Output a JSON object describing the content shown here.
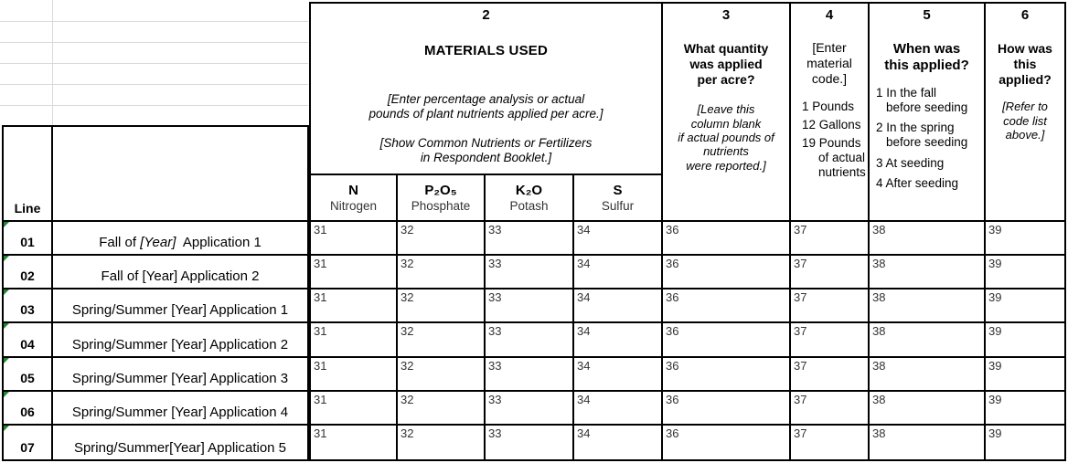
{
  "table": {
    "line_header": "Line",
    "columns": {
      "materials": {
        "number": "2",
        "title": "MATERIALS USED",
        "note1": "[Enter percentage analysis or actual\npounds of plant nutrients applied per acre.]",
        "note2": "[Show Common Nutrients or Fertilizers\nin Respondent Booklet.]",
        "nutrients": [
          {
            "symbol": "N",
            "name": "Nitrogen"
          },
          {
            "symbol": "P₂O₅",
            "name": "Phosphate"
          },
          {
            "symbol": "K₂O",
            "name": "Potash"
          },
          {
            "symbol": "S",
            "name": "Sulfur"
          }
        ]
      },
      "quantity": {
        "number": "3",
        "title": "What quantity\nwas applied\nper acre?",
        "note": "[Leave this\ncolumn blank\nif actual pounds of\nnutrients\nwere reported.]"
      },
      "material_code": {
        "number": "4",
        "note": "[Enter\nmaterial\ncode.]",
        "options": [
          "1 Pounds",
          "12 Gallons",
          "19 Pounds\nof actual\nnutrients"
        ]
      },
      "when_applied": {
        "number": "5",
        "title": "When was\nthis applied?",
        "options": [
          "1 In the fall\nbefore seeding",
          "2 In the spring\nbefore seeding",
          "3 At seeding",
          "4 After seeding"
        ]
      },
      "how_applied": {
        "number": "6",
        "title": "How was\nthis\napplied?",
        "note": "[Refer to\ncode list\nabove.]"
      }
    },
    "rows": [
      {
        "line": "01",
        "label_pre": "Fall of ",
        "label_year": "[Year]",
        "label_post": "  Application 1",
        "codes": [
          "31",
          "32",
          "33",
          "34",
          "36",
          "37",
          "38",
          "39"
        ]
      },
      {
        "line": "02",
        "label": "Fall of [Year] Application 2",
        "codes": [
          "31",
          "32",
          "33",
          "34",
          "36",
          "37",
          "38",
          "39"
        ]
      },
      {
        "line": "03",
        "label": "Spring/Summer [Year] Application 1",
        "codes": [
          "31",
          "32",
          "33",
          "34",
          "36",
          "37",
          "38",
          "39"
        ]
      },
      {
        "line": "04",
        "label": "Spring/Summer [Year] Application 2",
        "codes": [
          "31",
          "32",
          "33",
          "34",
          "36",
          "37",
          "38",
          "39"
        ]
      },
      {
        "line": "05",
        "label": "Spring/Summer [Year] Application 3",
        "codes": [
          "31",
          "32",
          "33",
          "34",
          "36",
          "37",
          "38",
          "39"
        ]
      },
      {
        "line": "06",
        "label": "Spring/Summer [Year] Application 4",
        "codes": [
          "31",
          "32",
          "33",
          "34",
          "36",
          "37",
          "38",
          "39"
        ]
      },
      {
        "line": "07",
        "label": "Spring/Summer[Year] Application 5",
        "codes": [
          "31",
          "32",
          "33",
          "34",
          "36",
          "37",
          "38",
          "39"
        ]
      }
    ],
    "colors": {
      "border": "#000000",
      "gridline": "#d9d9d9",
      "error_indicator_green": "#1f8a2f",
      "code_text": "#333333"
    }
  }
}
